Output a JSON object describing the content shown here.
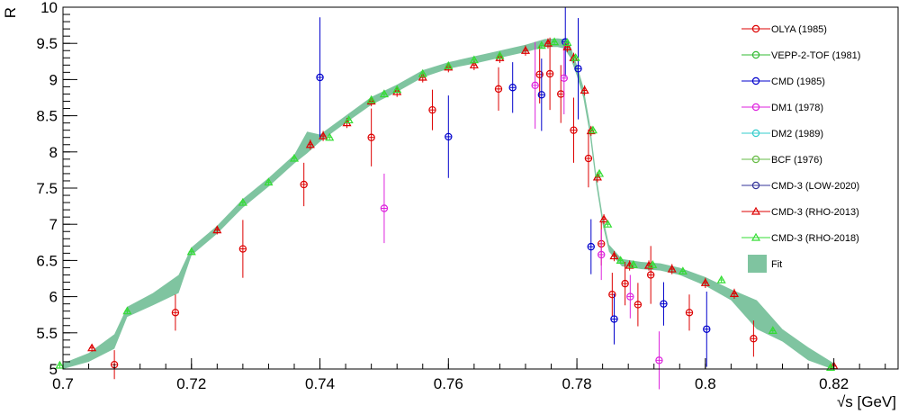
{
  "chart_data": {
    "type": "scatter",
    "title": "",
    "xlabel": "√s [GeV]",
    "ylabel": "R",
    "xlim": [
      0.7,
      0.83
    ],
    "ylim": [
      5,
      10
    ],
    "grid": false,
    "legend_position": "right",
    "x_ticks": [
      {
        "value": 0.7,
        "label": "0.7"
      },
      {
        "value": 0.72,
        "label": "0.72"
      },
      {
        "value": 0.74,
        "label": "0.74"
      },
      {
        "value": 0.76,
        "label": "0.76"
      },
      {
        "value": 0.78,
        "label": "0.78"
      },
      {
        "value": 0.8,
        "label": "0.8"
      },
      {
        "value": 0.82,
        "label": "0.82"
      }
    ],
    "y_ticks": [
      {
        "value": 5,
        "label": "5"
      },
      {
        "value": 5.5,
        "label": "5.5"
      },
      {
        "value": 6,
        "label": "6"
      },
      {
        "value": 6.5,
        "label": "6.5"
      },
      {
        "value": 7,
        "label": "7"
      },
      {
        "value": 7.5,
        "label": "7.5"
      },
      {
        "value": 8,
        "label": "8"
      },
      {
        "value": 8.5,
        "label": "8.5"
      },
      {
        "value": 9,
        "label": "9"
      },
      {
        "value": 9.5,
        "label": "9.5"
      },
      {
        "value": 10,
        "label": "10"
      }
    ],
    "fit_band": {
      "name": "Fit",
      "color": "#7fc4a0",
      "x": [
        0.7,
        0.704,
        0.708,
        0.71,
        0.714,
        0.718,
        0.72,
        0.724,
        0.728,
        0.732,
        0.736,
        0.738,
        0.74,
        0.744,
        0.748,
        0.752,
        0.756,
        0.76,
        0.764,
        0.768,
        0.772,
        0.775,
        0.777,
        0.778,
        0.779,
        0.78,
        0.781,
        0.782,
        0.783,
        0.784,
        0.785,
        0.787,
        0.79,
        0.793,
        0.796,
        0.8,
        0.804,
        0.808,
        0.812,
        0.816,
        0.82
      ],
      "low": [
        5.0,
        5.1,
        5.28,
        5.72,
        5.88,
        6.05,
        6.57,
        6.87,
        7.23,
        7.52,
        7.84,
        7.98,
        8.14,
        8.4,
        8.65,
        8.83,
        9.03,
        9.15,
        9.22,
        9.3,
        9.38,
        9.45,
        9.45,
        9.43,
        9.3,
        9.05,
        8.75,
        8.25,
        7.55,
        7.0,
        6.62,
        6.42,
        6.38,
        6.36,
        6.3,
        6.15,
        5.95,
        5.55,
        5.38,
        5.12,
        4.99
      ],
      "high": [
        5.08,
        5.22,
        5.48,
        5.86,
        6.05,
        6.3,
        6.68,
        6.98,
        7.35,
        7.64,
        7.96,
        8.28,
        8.24,
        8.5,
        8.76,
        8.93,
        9.13,
        9.24,
        9.32,
        9.4,
        9.48,
        9.56,
        9.57,
        9.56,
        9.46,
        9.2,
        8.9,
        8.4,
        7.68,
        7.12,
        6.72,
        6.52,
        6.48,
        6.46,
        6.4,
        6.27,
        6.1,
        5.95,
        5.55,
        5.3,
        5.08
      ]
    },
    "series": [
      {
        "name": "OLYA (1985)",
        "color": "#dd0000",
        "marker": "circle",
        "points": [
          {
            "x": 0.708,
            "y": 5.06,
            "err": 0.2
          },
          {
            "x": 0.7175,
            "y": 5.78,
            "err": 0.25
          },
          {
            "x": 0.728,
            "y": 6.66,
            "err": 0.4
          },
          {
            "x": 0.7375,
            "y": 7.55,
            "err": 0.3
          },
          {
            "x": 0.748,
            "y": 8.2,
            "err": 0.4
          },
          {
            "x": 0.7575,
            "y": 8.58,
            "err": 0.28
          },
          {
            "x": 0.7678,
            "y": 8.87,
            "err": 0.3
          },
          {
            "x": 0.7742,
            "y": 9.07,
            "err": 0.4
          },
          {
            "x": 0.7758,
            "y": 9.08,
            "err": 0.5
          },
          {
            "x": 0.7775,
            "y": 8.8,
            "err": 0.4
          },
          {
            "x": 0.7795,
            "y": 8.3,
            "err": 0.45
          },
          {
            "x": 0.7818,
            "y": 7.91,
            "err": 0.4
          },
          {
            "x": 0.7838,
            "y": 6.73,
            "err": 0.3
          },
          {
            "x": 0.7855,
            "y": 6.03,
            "err": 0.3
          },
          {
            "x": 0.7875,
            "y": 6.18,
            "err": 0.3
          },
          {
            "x": 0.7895,
            "y": 5.89,
            "err": 0.3
          },
          {
            "x": 0.7915,
            "y": 6.3,
            "err": 0.4
          },
          {
            "x": 0.7975,
            "y": 5.78,
            "err": 0.25
          },
          {
            "x": 0.8075,
            "y": 5.42,
            "err": 0.25
          }
        ]
      },
      {
        "name": "VEPP-2-TOF (1981)",
        "color": "#33bb33",
        "marker": "circle",
        "points": []
      },
      {
        "name": "CMD (1985)",
        "color": "#0000cc",
        "marker": "circle",
        "points": [
          {
            "x": 0.74,
            "y": 9.03,
            "err": 0.83
          },
          {
            "x": 0.76,
            "y": 8.21,
            "err": 0.57
          },
          {
            "x": 0.77,
            "y": 8.89,
            "err": 0.35
          },
          {
            "x": 0.7745,
            "y": 8.79,
            "err": 0.5
          },
          {
            "x": 0.7782,
            "y": 9.52,
            "err": 0.48
          },
          {
            "x": 0.7802,
            "y": 9.15,
            "err": 0.7
          },
          {
            "x": 0.7822,
            "y": 6.69,
            "err": 0.38
          },
          {
            "x": 0.7858,
            "y": 5.69,
            "err": 0.35
          },
          {
            "x": 0.7935,
            "y": 5.9,
            "err": 0.3
          },
          {
            "x": 0.8002,
            "y": 5.55,
            "err": 0.52
          }
        ]
      },
      {
        "name": "DM1 (1978)",
        "color": "#dd22dd",
        "marker": "circle",
        "points": [
          {
            "x": 0.75,
            "y": 7.22,
            "err": 0.48
          },
          {
            "x": 0.7735,
            "y": 8.92,
            "err": 0.6
          },
          {
            "x": 0.778,
            "y": 9.02,
            "err": 0.5
          },
          {
            "x": 0.7838,
            "y": 6.58,
            "err": 0.35
          },
          {
            "x": 0.7883,
            "y": 6.0,
            "err": 0.3
          },
          {
            "x": 0.7928,
            "y": 5.12,
            "err": 0.4
          }
        ]
      },
      {
        "name": "DM2 (1989)",
        "color": "#33cccc",
        "marker": "circle",
        "points": []
      },
      {
        "name": "BCF (1976)",
        "color": "#66bb44",
        "marker": "circle",
        "points": []
      },
      {
        "name": "CMD-3 (LOW-2020)",
        "color": "#333399",
        "marker": "circle",
        "points": []
      },
      {
        "name": "CMD-3 (RHO-2013)",
        "color": "#dd0000",
        "marker": "triangle",
        "points": [
          {
            "x": 0.7045,
            "y": 5.29,
            "err": 0.05
          },
          {
            "x": 0.724,
            "y": 6.92,
            "err": 0.06
          },
          {
            "x": 0.7385,
            "y": 8.1,
            "err": 0.07
          },
          {
            "x": 0.7405,
            "y": 8.22,
            "err": 0.07
          },
          {
            "x": 0.7442,
            "y": 8.4,
            "err": 0.07
          },
          {
            "x": 0.748,
            "y": 8.7,
            "err": 0.07
          },
          {
            "x": 0.752,
            "y": 8.83,
            "err": 0.07
          },
          {
            "x": 0.756,
            "y": 9.03,
            "err": 0.07
          },
          {
            "x": 0.76,
            "y": 9.17,
            "err": 0.07
          },
          {
            "x": 0.764,
            "y": 9.2,
            "err": 0.07
          },
          {
            "x": 0.768,
            "y": 9.3,
            "err": 0.07
          },
          {
            "x": 0.772,
            "y": 9.4,
            "err": 0.07
          },
          {
            "x": 0.7755,
            "y": 9.5,
            "err": 0.07
          },
          {
            "x": 0.7785,
            "y": 9.45,
            "err": 0.07
          },
          {
            "x": 0.7795,
            "y": 9.3,
            "err": 0.07
          },
          {
            "x": 0.7812,
            "y": 8.85,
            "err": 0.07
          },
          {
            "x": 0.7822,
            "y": 8.29,
            "err": 0.07
          },
          {
            "x": 0.7832,
            "y": 7.65,
            "err": 0.07
          },
          {
            "x": 0.7842,
            "y": 7.07,
            "err": 0.07
          },
          {
            "x": 0.7858,
            "y": 6.56,
            "err": 0.07
          },
          {
            "x": 0.7882,
            "y": 6.43,
            "err": 0.07
          },
          {
            "x": 0.7912,
            "y": 6.43,
            "err": 0.07
          },
          {
            "x": 0.7948,
            "y": 6.38,
            "err": 0.07
          },
          {
            "x": 0.8,
            "y": 6.19,
            "err": 0.07
          },
          {
            "x": 0.8045,
            "y": 6.04,
            "err": 0.07
          },
          {
            "x": 0.82,
            "y": 5.04,
            "err": 0.05
          }
        ]
      },
      {
        "name": "CMD-3 (RHO-2018)",
        "color": "#33dd33",
        "marker": "triangle",
        "points": [
          {
            "x": 0.6995,
            "y": 5.05,
            "err": 0.03
          },
          {
            "x": 0.71,
            "y": 5.8,
            "err": 0.03
          },
          {
            "x": 0.72,
            "y": 6.62,
            "err": 0.03
          },
          {
            "x": 0.728,
            "y": 7.3,
            "err": 0.03
          },
          {
            "x": 0.732,
            "y": 7.58,
            "err": 0.03
          },
          {
            "x": 0.736,
            "y": 7.91,
            "err": 0.03
          },
          {
            "x": 0.7415,
            "y": 8.2,
            "err": 0.03
          },
          {
            "x": 0.7445,
            "y": 8.44,
            "err": 0.03
          },
          {
            "x": 0.748,
            "y": 8.72,
            "err": 0.03
          },
          {
            "x": 0.75,
            "y": 8.8,
            "err": 0.03
          },
          {
            "x": 0.752,
            "y": 8.86,
            "err": 0.03
          },
          {
            "x": 0.756,
            "y": 9.08,
            "err": 0.03
          },
          {
            "x": 0.76,
            "y": 9.19,
            "err": 0.03
          },
          {
            "x": 0.764,
            "y": 9.27,
            "err": 0.03
          },
          {
            "x": 0.768,
            "y": 9.33,
            "err": 0.03
          },
          {
            "x": 0.7745,
            "y": 9.47,
            "err": 0.03
          },
          {
            "x": 0.7765,
            "y": 9.52,
            "err": 0.03
          },
          {
            "x": 0.7785,
            "y": 9.51,
            "err": 0.03
          },
          {
            "x": 0.7798,
            "y": 9.3,
            "err": 0.03
          },
          {
            "x": 0.7825,
            "y": 8.3,
            "err": 0.03
          },
          {
            "x": 0.7835,
            "y": 7.7,
            "err": 0.03
          },
          {
            "x": 0.7848,
            "y": 7.0,
            "err": 0.03
          },
          {
            "x": 0.7868,
            "y": 6.5,
            "err": 0.03
          },
          {
            "x": 0.7888,
            "y": 6.44,
            "err": 0.03
          },
          {
            "x": 0.7918,
            "y": 6.44,
            "err": 0.03
          },
          {
            "x": 0.7965,
            "y": 6.35,
            "err": 0.03
          },
          {
            "x": 0.8025,
            "y": 6.23,
            "err": 0.03
          },
          {
            "x": 0.8105,
            "y": 5.53,
            "err": 0.03
          },
          {
            "x": 0.8195,
            "y": 5.02,
            "err": 0.03
          }
        ]
      }
    ]
  }
}
